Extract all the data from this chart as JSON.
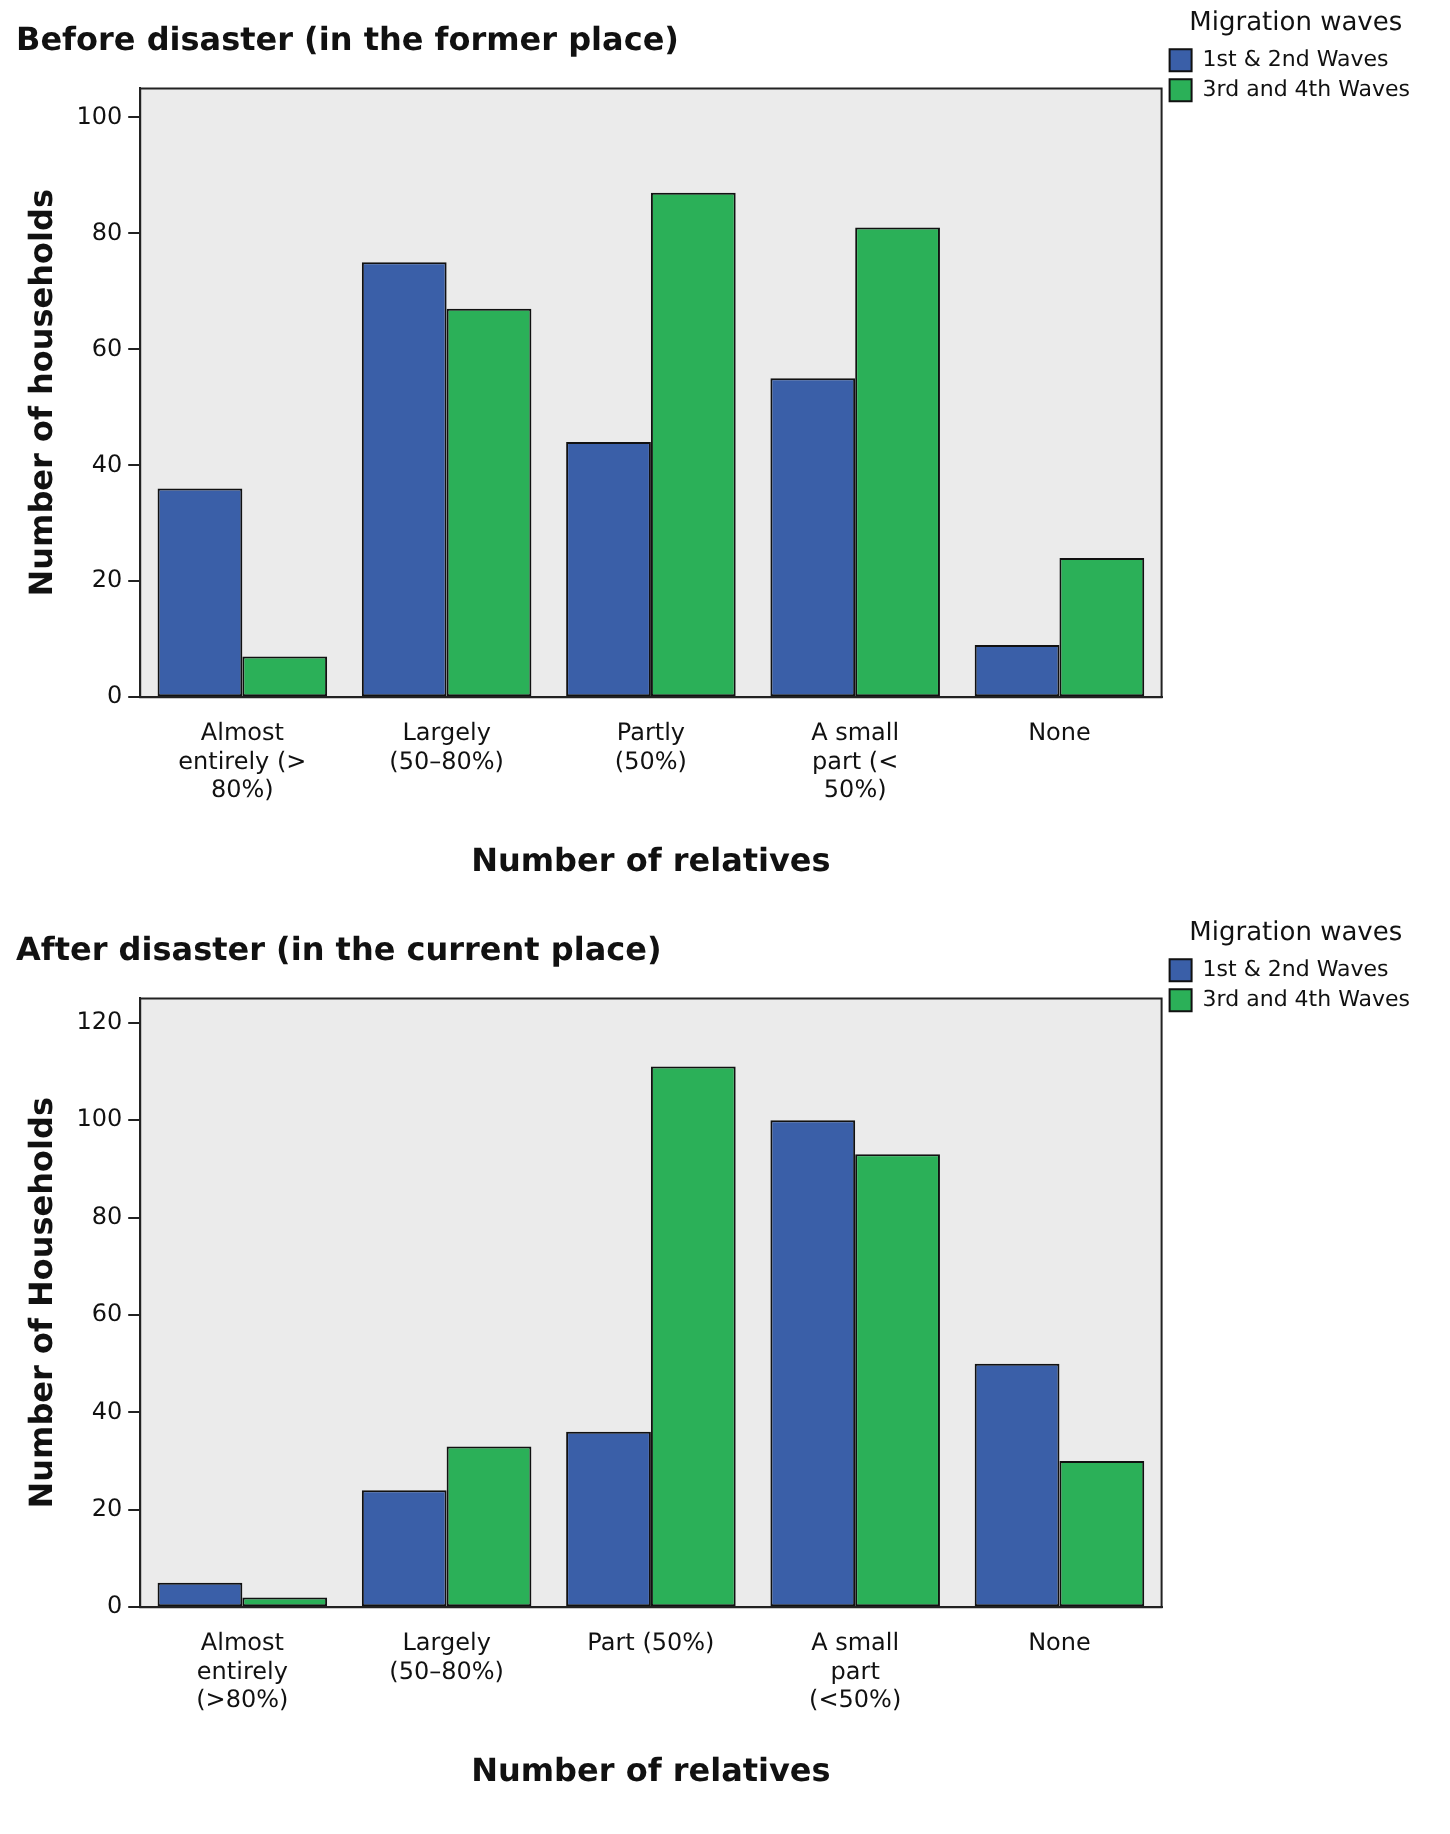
{
  "chart_data": [
    {
      "type": "bar",
      "title": "Before disaster (in the former place)",
      "xlabel": "Number of relatives",
      "ylabel": "Number of households",
      "legend_title": "Migration waves",
      "categories": [
        "Almost entirely (> 80%)",
        "Largely (50–80%)",
        "Partly (50%)",
        "A small part (< 50%)",
        "None"
      ],
      "series": [
        {
          "name": "1st & 2nd Waves",
          "color": "#3a5fa8",
          "values": [
            36,
            75,
            44,
            55,
            9
          ]
        },
        {
          "name": "3rd and 4th Waves",
          "color": "#2bb058",
          "values": [
            7,
            67,
            87,
            81,
            24
          ]
        }
      ],
      "ylim": [
        0,
        105
      ],
      "yticks": [
        0,
        20,
        40,
        60,
        80,
        100
      ],
      "grid": false,
      "legend": "top right"
    },
    {
      "type": "bar",
      "title": "After disaster (in the current place)",
      "xlabel": "Number of relatives",
      "ylabel": "Number of Households",
      "legend_title": "Migration waves",
      "categories": [
        "Almost entirely (>80%)",
        "Largely (50–80%)",
        "Part (50%)",
        "A small part (<50%)",
        "None"
      ],
      "series": [
        {
          "name": "1st & 2nd Waves",
          "color": "#3a5fa8",
          "values": [
            5,
            24,
            36,
            100,
            50
          ]
        },
        {
          "name": "3rd and 4th Waves",
          "color": "#2bb058",
          "values": [
            2,
            33,
            111,
            93,
            30
          ]
        }
      ],
      "ylim": [
        0,
        125
      ],
      "yticks": [
        0,
        20,
        40,
        60,
        80,
        100,
        120
      ],
      "grid": false,
      "legend": "top right"
    }
  ]
}
